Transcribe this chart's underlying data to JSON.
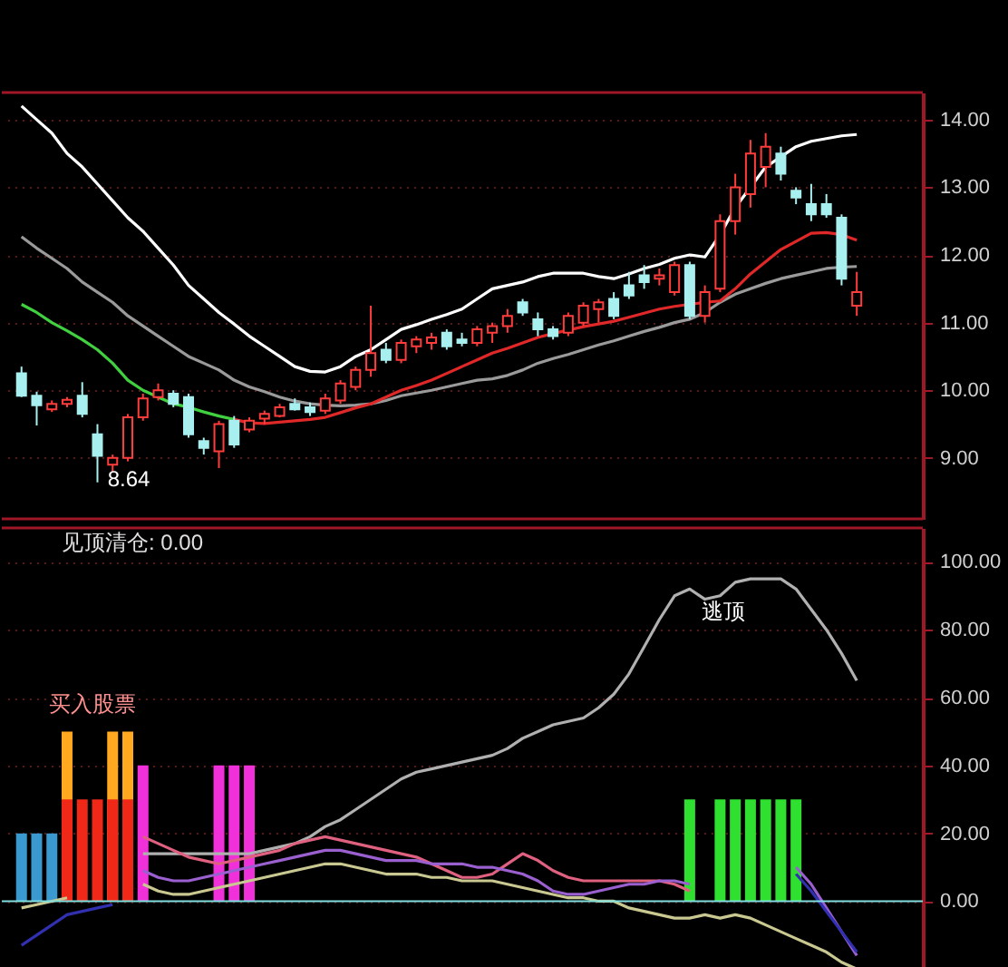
{
  "chart_data": [
    {
      "type": "candlestick",
      "categories": [
        null,
        null,
        null,
        null,
        null,
        null,
        null,
        null,
        null,
        null,
        null,
        null,
        null,
        null,
        null,
        null,
        null,
        null,
        null,
        null,
        null,
        null,
        null,
        null,
        null,
        null,
        null,
        null,
        null,
        null,
        null,
        null,
        null,
        null,
        null,
        null,
        null,
        null,
        null,
        null,
        null,
        null,
        null,
        null,
        null,
        null,
        null,
        null,
        null,
        null,
        null,
        null,
        null,
        null,
        null,
        null
      ],
      "ohlc": [
        [
          10.25,
          10.35,
          9.9,
          9.92
        ],
        [
          9.92,
          9.98,
          9.48,
          9.78
        ],
        [
          9.72,
          9.85,
          9.68,
          9.8
        ],
        [
          9.8,
          9.9,
          9.75,
          9.86
        ],
        [
          9.92,
          10.12,
          9.6,
          9.65
        ],
        [
          9.35,
          9.5,
          8.64,
          9.03
        ],
        [
          8.9,
          9.05,
          8.8,
          9.0
        ],
        [
          9.0,
          9.65,
          8.95,
          9.6
        ],
        [
          9.6,
          9.95,
          9.55,
          9.88
        ],
        [
          9.9,
          10.1,
          9.85,
          10.0
        ],
        [
          9.95,
          10.0,
          9.75,
          9.8
        ],
        [
          9.9,
          9.95,
          9.3,
          9.35
        ],
        [
          9.25,
          9.3,
          9.05,
          9.15
        ],
        [
          9.1,
          9.55,
          8.85,
          9.5
        ],
        [
          9.55,
          9.62,
          9.15,
          9.2
        ],
        [
          9.42,
          9.6,
          9.38,
          9.55
        ],
        [
          9.58,
          9.7,
          9.5,
          9.65
        ],
        [
          9.62,
          9.8,
          9.6,
          9.75
        ],
        [
          9.8,
          9.88,
          9.7,
          9.72
        ],
        [
          9.75,
          9.82,
          9.62,
          9.68
        ],
        [
          9.7,
          9.95,
          9.65,
          9.88
        ],
        [
          9.85,
          10.15,
          9.8,
          10.1
        ],
        [
          10.05,
          10.35,
          10.0,
          10.3
        ],
        [
          10.3,
          11.25,
          10.2,
          10.55
        ],
        [
          10.6,
          10.7,
          10.4,
          10.45
        ],
        [
          10.45,
          10.75,
          10.4,
          10.7
        ],
        [
          10.65,
          10.8,
          10.55,
          10.75
        ],
        [
          10.7,
          10.85,
          10.6,
          10.78
        ],
        [
          10.85,
          10.9,
          10.6,
          10.65
        ],
        [
          10.75,
          10.85,
          10.65,
          10.7
        ],
        [
          10.7,
          10.95,
          10.65,
          10.9
        ],
        [
          10.85,
          11.0,
          10.7,
          10.95
        ],
        [
          10.95,
          11.2,
          10.85,
          11.1
        ],
        [
          11.3,
          11.35,
          11.1,
          11.15
        ],
        [
          11.05,
          11.15,
          10.8,
          10.9
        ],
        [
          10.9,
          10.95,
          10.75,
          10.8
        ],
        [
          10.85,
          11.15,
          10.8,
          11.1
        ],
        [
          11.0,
          11.3,
          10.95,
          11.25
        ],
        [
          11.2,
          11.35,
          11.0,
          11.3
        ],
        [
          11.35,
          11.45,
          11.05,
          11.1
        ],
        [
          11.55,
          11.75,
          11.35,
          11.4
        ],
        [
          11.7,
          11.85,
          11.5,
          11.6
        ],
        [
          11.65,
          11.8,
          11.55,
          11.7
        ],
        [
          11.45,
          11.9,
          11.4,
          11.85
        ],
        [
          11.85,
          11.9,
          11.05,
          11.1
        ],
        [
          11.1,
          11.55,
          11.0,
          11.45
        ],
        [
          11.5,
          12.6,
          11.45,
          12.5
        ],
        [
          12.5,
          13.2,
          12.3,
          13.0
        ],
        [
          12.9,
          13.7,
          12.7,
          13.5
        ],
        [
          13.3,
          13.8,
          13.0,
          13.6
        ],
        [
          13.5,
          13.6,
          13.1,
          13.2
        ],
        [
          12.95,
          13.0,
          12.75,
          12.85
        ],
        [
          12.75,
          13.05,
          12.5,
          12.6
        ],
        [
          12.75,
          12.9,
          12.55,
          12.6
        ],
        [
          12.55,
          12.6,
          11.55,
          11.65
        ],
        [
          11.25,
          11.75,
          11.1,
          11.45
        ]
      ],
      "series": [
        {
          "type": "line",
          "color": "#ffffff",
          "values": [
            14.2,
            14.0,
            13.8,
            13.5,
            13.3,
            13.05,
            12.8,
            12.55,
            12.35,
            12.1,
            11.85,
            11.55,
            11.35,
            11.15,
            10.98,
            10.8,
            10.65,
            10.5,
            10.35,
            10.28,
            10.27,
            10.35,
            10.5,
            10.6,
            10.75,
            10.9,
            10.97,
            11.05,
            11.12,
            11.2,
            11.35,
            11.5,
            11.55,
            11.6,
            11.68,
            11.73,
            11.73,
            11.73,
            11.68,
            11.65,
            11.72,
            11.8,
            11.86,
            11.95,
            12.0,
            11.97,
            12.3,
            12.7,
            13.0,
            13.3,
            13.45,
            13.6,
            13.68,
            13.72,
            13.76,
            13.78
          ]
        },
        {
          "type": "line",
          "color": "#9a9a9a",
          "values": [
            12.27,
            12.1,
            11.95,
            11.8,
            11.6,
            11.45,
            11.3,
            11.1,
            10.95,
            10.8,
            10.65,
            10.5,
            10.4,
            10.3,
            10.15,
            10.05,
            9.98,
            9.9,
            9.84,
            9.8,
            9.78,
            9.77,
            9.78,
            9.8,
            9.85,
            9.92,
            9.96,
            10.0,
            10.05,
            10.1,
            10.15,
            10.17,
            10.22,
            10.3,
            10.4,
            10.47,
            10.53,
            10.6,
            10.67,
            10.73,
            10.8,
            10.87,
            10.93,
            11.0,
            11.05,
            11.15,
            11.3,
            11.42,
            11.5,
            11.58,
            11.65,
            11.7,
            11.75,
            11.8,
            11.82,
            11.83
          ]
        },
        {
          "type": "line",
          "color": "#40d040",
          "values": [
            11.27,
            11.15,
            11.0,
            10.88,
            10.75,
            10.6,
            10.4,
            10.15,
            10.0,
            9.9,
            9.8,
            9.75,
            9.68,
            9.62,
            9.57,
            null,
            null,
            null,
            null,
            null,
            null,
            null,
            null,
            null,
            null,
            null,
            null,
            null,
            null,
            null,
            null,
            null,
            null,
            null,
            null,
            null,
            null,
            null,
            null,
            null,
            null,
            null,
            null,
            null,
            null,
            null,
            null,
            null,
            null,
            null,
            null,
            null,
            null,
            null,
            null,
            null
          ]
        },
        {
          "type": "line",
          "color": "#e02828",
          "values": [
            null,
            null,
            null,
            null,
            null,
            null,
            null,
            null,
            null,
            null,
            null,
            null,
            null,
            null,
            9.57,
            9.52,
            9.51,
            9.53,
            9.55,
            9.57,
            9.6,
            9.67,
            9.74,
            9.8,
            9.9,
            10.0,
            10.07,
            10.15,
            10.25,
            10.35,
            10.45,
            10.55,
            10.62,
            10.7,
            10.78,
            10.84,
            10.89,
            10.94,
            10.98,
            11.02,
            11.08,
            11.14,
            11.2,
            11.24,
            11.27,
            11.3,
            11.32,
            11.5,
            11.72,
            11.9,
            12.08,
            12.2,
            12.32,
            12.33,
            12.3,
            12.22
          ]
        }
      ],
      "ylim": [
        8.1,
        14.4
      ],
      "yticks": [
        {
          "value": 9,
          "label": "9.00"
        },
        {
          "value": 10,
          "label": "10.00"
        },
        {
          "value": 11,
          "label": "11.00"
        },
        {
          "value": 12,
          "label": "12.00"
        },
        {
          "value": 13,
          "label": "13.00"
        },
        {
          "value": 14,
          "label": "14.00"
        }
      ],
      "grid": "y",
      "annotations": [
        "8.64"
      ]
    },
    {
      "type": "bar",
      "title": "见顶清仓: 0.00",
      "categories": [
        null,
        null,
        null,
        null,
        null,
        null,
        null,
        null,
        null,
        null,
        null,
        null,
        null,
        null,
        null,
        null,
        null,
        null,
        null,
        null,
        null,
        null,
        null,
        null,
        null,
        null,
        null,
        null,
        null,
        null,
        null,
        null,
        null,
        null,
        null,
        null,
        null,
        null,
        null,
        null,
        null,
        null,
        null,
        null,
        null,
        null,
        null,
        null,
        null,
        null,
        null,
        null,
        null,
        null,
        null,
        null
      ],
      "series": [
        {
          "color": "#3a9ad0",
          "values": [
            20,
            20,
            20,
            null,
            null,
            null,
            null,
            null,
            null,
            null,
            null,
            null,
            null,
            null,
            null,
            null,
            null,
            null,
            null,
            null,
            null,
            null,
            null,
            null,
            null,
            null,
            null,
            null,
            null,
            null,
            null,
            null,
            null,
            null,
            null,
            null,
            null,
            null,
            null,
            null,
            null,
            null,
            null,
            null,
            null,
            null,
            null,
            null,
            null,
            null,
            null,
            null,
            null,
            null,
            null,
            null
          ]
        },
        {
          "color": "#ffa820",
          "values": [
            null,
            null,
            null,
            50,
            null,
            null,
            50,
            50,
            null,
            null,
            null,
            null,
            null,
            null,
            null,
            null,
            null,
            null,
            null,
            null,
            null,
            null,
            null,
            null,
            null,
            null,
            null,
            null,
            null,
            null,
            null,
            null,
            null,
            null,
            null,
            null,
            null,
            null,
            null,
            null,
            null,
            null,
            null,
            null,
            null,
            null,
            null,
            null,
            null,
            null,
            null,
            null,
            null,
            null,
            null,
            null
          ]
        },
        {
          "color": "#f02818",
          "values": [
            null,
            null,
            null,
            30,
            30,
            30,
            30,
            30,
            null,
            null,
            null,
            null,
            null,
            null,
            null,
            null,
            null,
            null,
            null,
            null,
            null,
            null,
            null,
            null,
            null,
            null,
            null,
            null,
            null,
            null,
            null,
            null,
            null,
            null,
            null,
            null,
            null,
            null,
            null,
            null,
            null,
            null,
            null,
            null,
            null,
            null,
            null,
            null,
            null,
            null,
            null,
            null,
            null,
            null,
            null,
            null
          ]
        },
        {
          "color": "#f030d8",
          "values": [
            null,
            null,
            null,
            null,
            null,
            null,
            null,
            null,
            40,
            null,
            null,
            null,
            null,
            40,
            40,
            40,
            null,
            null,
            null,
            null,
            null,
            null,
            null,
            null,
            null,
            null,
            null,
            null,
            null,
            null,
            null,
            null,
            null,
            null,
            null,
            null,
            null,
            null,
            null,
            null,
            null,
            null,
            null,
            null,
            null,
            null,
            null,
            null,
            null,
            null,
            null,
            null,
            null,
            null,
            null,
            null
          ]
        },
        {
          "color": "#30e030",
          "values": [
            null,
            null,
            null,
            null,
            null,
            null,
            null,
            null,
            null,
            null,
            null,
            null,
            null,
            null,
            null,
            null,
            null,
            null,
            null,
            null,
            null,
            null,
            null,
            null,
            null,
            null,
            null,
            null,
            null,
            null,
            null,
            null,
            null,
            null,
            null,
            null,
            null,
            null,
            null,
            null,
            null,
            null,
            null,
            null,
            30,
            null,
            30,
            30,
            30,
            30,
            30,
            30,
            null,
            null,
            null,
            null
          ]
        },
        {
          "type": "line",
          "color": "#b0b0b0",
          "values": [
            null,
            null,
            null,
            null,
            null,
            null,
            null,
            null,
            14,
            14,
            14,
            14,
            14,
            14,
            14,
            14,
            15,
            16,
            17,
            19,
            22,
            24,
            27,
            30,
            33,
            36,
            38,
            39,
            40,
            41,
            42,
            43,
            45,
            48,
            50,
            52,
            53,
            54,
            57,
            61,
            67,
            75,
            83,
            90,
            92,
            89,
            90,
            94,
            95,
            95,
            95,
            92,
            86,
            80,
            73,
            65
          ]
        },
        {
          "type": "line",
          "color": "#e06080",
          "values": [
            null,
            null,
            null,
            null,
            null,
            null,
            null,
            null,
            19,
            17,
            15,
            13,
            12,
            11,
            12,
            13,
            14,
            15,
            17,
            18,
            19,
            18,
            17,
            16,
            15,
            14,
            13,
            11,
            9,
            7,
            7,
            8,
            11,
            14,
            12,
            9,
            7,
            6,
            6,
            6,
            6,
            6,
            6,
            5,
            3,
            null,
            null,
            null,
            null,
            null,
            null,
            null,
            null,
            null,
            null,
            null
          ]
        },
        {
          "type": "line",
          "color": "#9a60d0",
          "values": [
            null,
            null,
            null,
            null,
            null,
            null,
            null,
            null,
            9,
            7,
            6,
            6,
            7,
            8,
            9,
            10,
            11,
            12,
            13,
            14,
            15,
            15,
            14,
            13,
            12,
            12,
            12,
            11,
            11,
            11,
            10,
            10,
            9,
            8,
            6,
            3,
            2,
            2,
            3,
            4,
            5,
            5,
            6,
            6,
            5,
            null,
            null,
            null,
            null,
            null,
            null,
            10,
            5,
            -2,
            -9,
            -16
          ]
        },
        {
          "type": "line",
          "color": "#c8c890",
          "values": [
            -2,
            -1,
            0,
            1,
            null,
            null,
            null,
            null,
            5,
            3,
            2,
            2,
            3,
            4,
            5,
            6,
            7,
            8,
            9,
            10,
            11,
            11,
            10,
            9,
            8,
            8,
            8,
            7,
            7,
            6,
            6,
            6,
            5,
            4,
            3,
            2,
            1,
            1,
            0,
            0,
            -2,
            -3,
            -4,
            -5,
            -5,
            -4,
            -5,
            -4,
            -5,
            -7,
            -9,
            -11,
            -13,
            -15,
            -18,
            -20
          ]
        },
        {
          "type": "line",
          "color": "#3030b0",
          "values": [
            -13,
            -10,
            -7,
            -4,
            -3,
            -2,
            -1,
            null,
            null,
            null,
            null,
            null,
            null,
            null,
            null,
            null,
            null,
            null,
            null,
            null,
            null,
            null,
            null,
            null,
            null,
            null,
            null,
            null,
            null,
            null,
            null,
            null,
            null,
            null,
            null,
            null,
            null,
            null,
            null,
            null,
            null,
            null,
            null,
            null,
            null,
            null,
            null,
            null,
            null,
            null,
            null,
            8,
            3,
            -3,
            -9,
            -15
          ]
        }
      ],
      "ylim": [
        -21,
        110
      ],
      "yticks": [
        {
          "value": 0,
          "label": "0.00"
        },
        {
          "value": 20,
          "label": "20.00"
        },
        {
          "value": 40,
          "label": "40.00"
        },
        {
          "value": 60,
          "label": "60.00"
        },
        {
          "value": 80,
          "label": "80.00"
        },
        {
          "value": 100,
          "label": "100.00"
        }
      ],
      "grid": "y",
      "ref_lines": [
        {
          "axis": "y",
          "value": 0,
          "color": "#80e0e0"
        }
      ],
      "annotations": [
        "买入股票",
        "逃顶"
      ]
    }
  ]
}
